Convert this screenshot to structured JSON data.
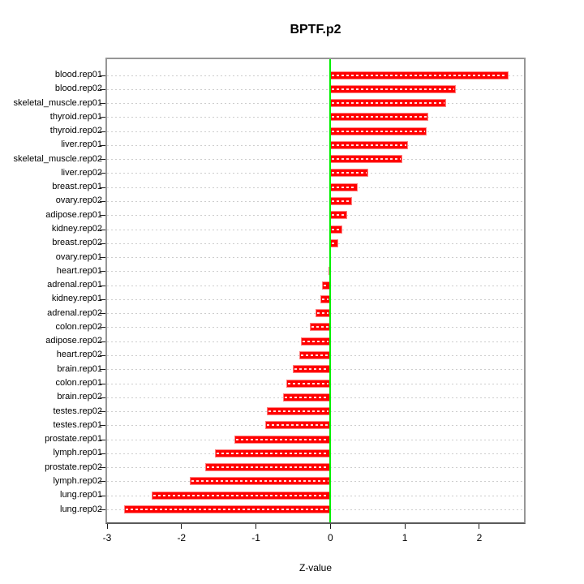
{
  "chart_data": {
    "type": "bar",
    "orientation": "horizontal",
    "title": "BPTF.p2",
    "xlabel": "Z-value",
    "ylabel": "",
    "xlim": [
      -3,
      2.6
    ],
    "x_ticks": [
      -3,
      -2,
      -1,
      0,
      1,
      2
    ],
    "grid": "dotted horizontal reference line per category",
    "legend": "none",
    "categories": [
      "blood.rep01",
      "blood.rep02",
      "skeletal_muscle.rep01",
      "thyroid.rep01",
      "thyroid.rep02",
      "liver.rep01",
      "skeletal_muscle.rep02",
      "liver.rep02",
      "breast.rep01",
      "ovary.rep02",
      "adipose.rep01",
      "kidney.rep02",
      "breast.rep02",
      "ovary.rep01",
      "heart.rep01",
      "adrenal.rep01",
      "kidney.rep01",
      "adrenal.rep02",
      "colon.rep02",
      "adipose.rep02",
      "heart.rep02",
      "brain.rep01",
      "colon.rep01",
      "brain.rep02",
      "testes.rep02",
      "testes.rep01",
      "prostate.rep01",
      "lymph.rep01",
      "prostate.rep02",
      "lymph.rep02",
      "lung.rep01",
      "lung.rep02"
    ],
    "values": [
      2.39,
      1.68,
      1.55,
      1.31,
      1.29,
      1.04,
      0.97,
      0.51,
      0.37,
      0.29,
      0.22,
      0.16,
      0.1,
      -0.01,
      -0.03,
      -0.11,
      -0.13,
      -0.2,
      -0.28,
      -0.4,
      -0.42,
      -0.5,
      -0.59,
      -0.64,
      -0.85,
      -0.88,
      -1.29,
      -1.55,
      -1.68,
      -1.89,
      -2.4,
      -2.77
    ],
    "colors": {
      "bar_fill": "#ff0000",
      "bar_border": "#ff8080",
      "bar_center_dash": "#ffffff",
      "zero_line": "#00f000",
      "grid_dots": "#cdcdcd",
      "frame": "#969696",
      "axis_line": "#5a5a5a",
      "text": "#000000"
    }
  }
}
